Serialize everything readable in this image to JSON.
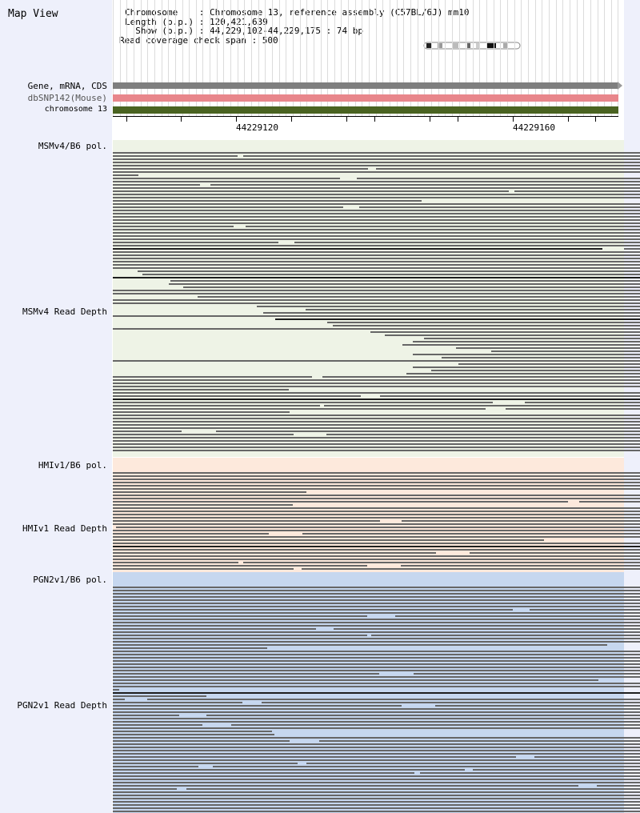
{
  "title": "Map View",
  "header": {
    "chromosome_line": "Chromosome    : Chromosome 13, reference assembly (C57BL/6J) mm10",
    "length_line": "Length (b.p.) : 120,421,639",
    "show_line": "  Show (b.p.) : 44,229,102-44,229,175 : 74 bp",
    "coverage_line": "Read coverage check span : 500"
  },
  "tracks": {
    "gene": "Gene, mRNA, CDS",
    "dbsnp": "dbSNP142(Mouse)",
    "chromosome": "chromosome 13"
  },
  "ruler": {
    "left_label": "44229120",
    "right_label": "44229160"
  },
  "groups": [
    {
      "pol_label": "MSMv4/B6 pol.",
      "depth_label": "MSMv4 Read Depth",
      "bg": "#eef3e6",
      "gap": "#f0f4e6"
    },
    {
      "pol_label": "HMIv1/B6 pol.",
      "depth_label": "HMIv1 Read Depth",
      "bg": "#fde9dc",
      "gap": "#fde9dc"
    },
    {
      "pol_label": "PGN2v1/B6 pol.",
      "depth_label": "PGN2v1 Read Depth",
      "bg": "#c6d7ef",
      "gap": "#c6d7ef"
    }
  ],
  "colors": {
    "gene_track": "#7f7f7f",
    "dbsnp_track": "#e8868b",
    "chromosome_track": "#4a6321",
    "read": "#666666"
  }
}
